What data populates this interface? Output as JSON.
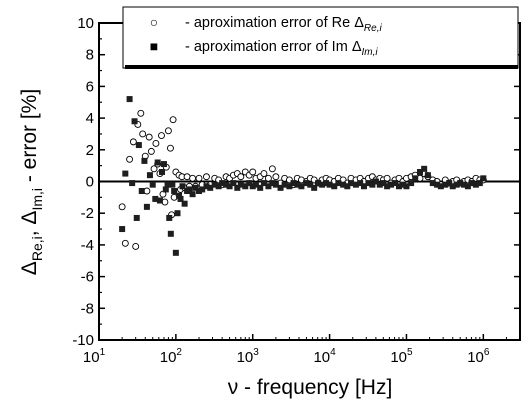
{
  "chart_data": {
    "type": "scatter",
    "title": "",
    "xlabel": {
      "symbol": "ν",
      "text": " - frequency   [Hz]"
    },
    "ylabel": {
      "text": "- error  [%]"
    },
    "x_scale": "log",
    "xlim": [
      10,
      3000000
    ],
    "ylim": [
      -10,
      10
    ],
    "x_ticks": [
      10,
      100,
      1000,
      10000,
      100000,
      1000000
    ],
    "x_tick_labels": [
      {
        "base": "10",
        "exp": "1"
      },
      {
        "base": "10",
        "exp": "2"
      },
      {
        "base": "10",
        "exp": "3"
      },
      {
        "base": "10",
        "exp": "4"
      },
      {
        "base": "10",
        "exp": "5"
      },
      {
        "base": "10",
        "exp": "6"
      }
    ],
    "y_ticks": [
      -10,
      -8,
      -6,
      -4,
      -2,
      0,
      2,
      4,
      6,
      8,
      10
    ],
    "grid": false,
    "reference_line": 0,
    "legend_position": "top-right",
    "series": [
      {
        "marker": "open-circle",
        "legend": {
          "symbol": "○",
          "text": "-  aproximation error of  Re",
          "delta_sub": "Re,i"
        },
        "points": [
          [
            20,
            -1.6
          ],
          [
            22,
            -3.9
          ],
          [
            25,
            1.4
          ],
          [
            28,
            2.5
          ],
          [
            30,
            -4.1
          ],
          [
            32,
            3.6
          ],
          [
            35,
            4.3
          ],
          [
            37,
            3.0
          ],
          [
            40,
            1.6
          ],
          [
            42,
            -0.6
          ],
          [
            45,
            2.8
          ],
          [
            48,
            1.9
          ],
          [
            52,
            0.8
          ],
          [
            55,
            2.4
          ],
          [
            58,
            1.1
          ],
          [
            62,
            0.5
          ],
          [
            65,
            2.9
          ],
          [
            68,
            -0.8
          ],
          [
            72,
            -1.3
          ],
          [
            75,
            0.9
          ],
          [
            80,
            3.2
          ],
          [
            85,
            2.1
          ],
          [
            88,
            -2.1
          ],
          [
            92,
            3.9
          ],
          [
            95,
            -1.0
          ],
          [
            100,
            0.6
          ],
          [
            105,
            -0.7
          ],
          [
            110,
            0.4
          ],
          [
            115,
            -0.5
          ],
          [
            120,
            0.3
          ],
          [
            130,
            -0.4
          ],
          [
            140,
            0.3
          ],
          [
            150,
            -0.3
          ],
          [
            165,
            0.2
          ],
          [
            180,
            -0.3
          ],
          [
            200,
            0.2
          ],
          [
            220,
            -0.2
          ],
          [
            250,
            0.3
          ],
          [
            280,
            -0.2
          ],
          [
            320,
            0.2
          ],
          [
            360,
            0.1
          ],
          [
            400,
            -0.2
          ],
          [
            450,
            0.3
          ],
          [
            500,
            0.2
          ],
          [
            560,
            0.4
          ],
          [
            630,
            0.5
          ],
          [
            700,
            0.3
          ],
          [
            800,
            0.6
          ],
          [
            900,
            0.4
          ],
          [
            1000,
            0.6
          ],
          [
            1100,
            0.2
          ],
          [
            1250,
            0.3
          ],
          [
            1400,
            0.5
          ],
          [
            1600,
            0.2
          ],
          [
            1800,
            0.8
          ],
          [
            2000,
            0.3
          ],
          [
            2300,
            -0.1
          ],
          [
            2600,
            0.2
          ],
          [
            3000,
            0.1
          ],
          [
            3400,
            -0.2
          ],
          [
            3800,
            0.2
          ],
          [
            4300,
            0.1
          ],
          [
            5000,
            0.0
          ],
          [
            5600,
            0.2
          ],
          [
            6300,
            0.1
          ],
          [
            7100,
            -0.1
          ],
          [
            8000,
            0.1
          ],
          [
            9000,
            0.2
          ],
          [
            10000,
            0.1
          ],
          [
            11500,
            0.0
          ],
          [
            13000,
            0.2
          ],
          [
            15000,
            0.1
          ],
          [
            17000,
            -0.1
          ],
          [
            19000,
            0.2
          ],
          [
            22000,
            0.1
          ],
          [
            25000,
            0.2
          ],
          [
            28000,
            0.0
          ],
          [
            32000,
            0.2
          ],
          [
            36000,
            0.3
          ],
          [
            40000,
            0.1
          ],
          [
            45000,
            0.2
          ],
          [
            50000,
            0.1
          ],
          [
            56000,
            0.2
          ],
          [
            63000,
            -0.1
          ],
          [
            71000,
            0.1
          ],
          [
            80000,
            0.2
          ],
          [
            90000,
            0.0
          ],
          [
            100000,
            0.2
          ],
          [
            115000,
            0.3
          ],
          [
            130000,
            0.4
          ],
          [
            150000,
            0.2
          ],
          [
            170000,
            0.5
          ],
          [
            190000,
            0.3
          ],
          [
            220000,
            0.1
          ],
          [
            250000,
            0.0
          ],
          [
            280000,
            -0.2
          ],
          [
            320000,
            0.1
          ],
          [
            360000,
            -0.1
          ],
          [
            400000,
            0.0
          ],
          [
            450000,
            0.1
          ],
          [
            500000,
            -0.1
          ],
          [
            560000,
            0.0
          ],
          [
            630000,
            0.1
          ],
          [
            710000,
            0.0
          ],
          [
            800000,
            0.2
          ],
          [
            900000,
            0.1
          ],
          [
            1000000,
            0.1
          ]
        ]
      },
      {
        "marker": "filled-square",
        "legend": {
          "symbol": "■",
          "text": "-  aproximation error of  Im",
          "delta_sub": "Im,i"
        },
        "points": [
          [
            20,
            -3.0
          ],
          [
            22,
            0.5
          ],
          [
            25,
            5.2
          ],
          [
            27,
            -0.1
          ],
          [
            29,
            3.8
          ],
          [
            31,
            -2.3
          ],
          [
            33,
            2.3
          ],
          [
            36,
            -0.6
          ],
          [
            39,
            1.3
          ],
          [
            42,
            -1.6
          ],
          [
            46,
            0.4
          ],
          [
            50,
            -0.2
          ],
          [
            54,
            -1.1
          ],
          [
            58,
            1.2
          ],
          [
            62,
            -1.2
          ],
          [
            66,
            0.6
          ],
          [
            70,
            1.1
          ],
          [
            74,
            -0.5
          ],
          [
            78,
            -0.2
          ],
          [
            82,
            -2.3
          ],
          [
            86,
            -3.3
          ],
          [
            90,
            -0.2
          ],
          [
            95,
            -0.6
          ],
          [
            100,
            -4.5
          ],
          [
            105,
            -2.0
          ],
          [
            110,
            -0.9
          ],
          [
            115,
            -1.1
          ],
          [
            122,
            -0.3
          ],
          [
            130,
            -1.4
          ],
          [
            140,
            -0.6
          ],
          [
            150,
            -0.5
          ],
          [
            165,
            -0.8
          ],
          [
            180,
            -0.4
          ],
          [
            200,
            -0.6
          ],
          [
            220,
            -0.5
          ],
          [
            250,
            -0.3
          ],
          [
            280,
            -0.4
          ],
          [
            320,
            -0.2
          ],
          [
            360,
            -0.3
          ],
          [
            400,
            -0.1
          ],
          [
            450,
            -0.2
          ],
          [
            500,
            -0.3
          ],
          [
            560,
            -0.1
          ],
          [
            630,
            -0.4
          ],
          [
            700,
            -0.2
          ],
          [
            800,
            -0.3
          ],
          [
            900,
            -0.1
          ],
          [
            1000,
            -0.3
          ],
          [
            1100,
            -0.2
          ],
          [
            1250,
            -0.4
          ],
          [
            1400,
            -0.1
          ],
          [
            1600,
            -0.3
          ],
          [
            1800,
            -0.1
          ],
          [
            2000,
            -0.2
          ],
          [
            2300,
            -0.4
          ],
          [
            2600,
            -0.2
          ],
          [
            3000,
            -0.3
          ],
          [
            3400,
            -0.1
          ],
          [
            3800,
            -0.2
          ],
          [
            4300,
            -0.3
          ],
          [
            5000,
            -0.1
          ],
          [
            5600,
            -0.2
          ],
          [
            6300,
            -0.4
          ],
          [
            7100,
            -0.1
          ],
          [
            8000,
            -0.2
          ],
          [
            9000,
            -0.1
          ],
          [
            10000,
            -0.2
          ],
          [
            11500,
            -0.3
          ],
          [
            13000,
            -0.1
          ],
          [
            15000,
            -0.2
          ],
          [
            17000,
            -0.3
          ],
          [
            19000,
            -0.1
          ],
          [
            22000,
            -0.2
          ],
          [
            25000,
            -0.1
          ],
          [
            28000,
            -0.3
          ],
          [
            32000,
            -0.1
          ],
          [
            36000,
            -0.2
          ],
          [
            40000,
            0.0
          ],
          [
            45000,
            -0.2
          ],
          [
            50000,
            -0.1
          ],
          [
            56000,
            -0.3
          ],
          [
            63000,
            -0.2
          ],
          [
            71000,
            -0.1
          ],
          [
            80000,
            -0.3
          ],
          [
            90000,
            -0.2
          ],
          [
            100000,
            -0.3
          ],
          [
            115000,
            -0.1
          ],
          [
            130000,
            0.2
          ],
          [
            150000,
            0.6
          ],
          [
            170000,
            0.8
          ],
          [
            190000,
            0.4
          ],
          [
            220000,
            -0.1
          ],
          [
            250000,
            -0.2
          ],
          [
            280000,
            -0.3
          ],
          [
            320000,
            -0.2
          ],
          [
            360000,
            -0.1
          ],
          [
            400000,
            -0.3
          ],
          [
            450000,
            -0.2
          ],
          [
            500000,
            -0.1
          ],
          [
            560000,
            -0.2
          ],
          [
            630000,
            -0.3
          ],
          [
            710000,
            -0.1
          ],
          [
            800000,
            -0.2
          ],
          [
            900000,
            -0.1
          ],
          [
            1000000,
            0.2
          ]
        ]
      }
    ]
  }
}
